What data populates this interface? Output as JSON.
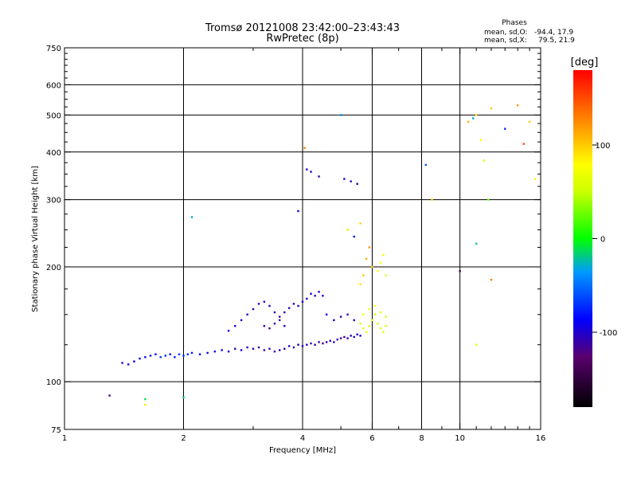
{
  "header": {
    "title_line1": "Tromsø 20121008 23:42:00–23:43:43",
    "title_line2": "RwPretec (8p)",
    "stats_title": "Phases",
    "stats_o_label": "mean, sd,O:",
    "stats_o_value": "-94.4, 17.9",
    "stats_x_label": "mean, sd,X:",
    "stats_x_value": "79.5, 21.9"
  },
  "chart_data": {
    "type": "scatter",
    "xlabel": "Frequency [MHz]",
    "ylabel": "Stationary phase Virtual Height [km]",
    "xscale": "log",
    "yscale": "log",
    "xlim": [
      1,
      16
    ],
    "ylim": [
      75,
      750
    ],
    "xticks": [
      1,
      2,
      4,
      6,
      8,
      10,
      16
    ],
    "yticks": [
      75,
      100,
      200,
      300,
      400,
      500,
      600,
      750
    ],
    "xgrid": [
      2,
      4,
      6,
      8,
      10
    ],
    "ygrid": [
      100,
      200,
      300,
      400,
      500,
      600
    ],
    "colorbar": {
      "label": "[deg]",
      "range": [
        -180,
        180
      ],
      "ticks": [
        -100,
        0,
        100
      ]
    },
    "trace_points": [
      [
        1.4,
        112,
        -95
      ],
      [
        1.45,
        111,
        -100
      ],
      [
        1.5,
        113,
        -90
      ],
      [
        1.55,
        115,
        -85
      ],
      [
        1.6,
        116,
        -92
      ],
      [
        1.65,
        117,
        -80
      ],
      [
        1.7,
        118,
        -88
      ],
      [
        1.75,
        116,
        -70
      ],
      [
        1.8,
        117,
        -75
      ],
      [
        1.85,
        118,
        -82
      ],
      [
        1.9,
        116,
        -78
      ],
      [
        1.95,
        118,
        -72
      ],
      [
        2.0,
        117,
        -68
      ],
      [
        2.05,
        118,
        -74
      ],
      [
        2.1,
        119,
        -80
      ],
      [
        2.2,
        118,
        -85
      ],
      [
        2.3,
        119,
        -90
      ],
      [
        2.4,
        120,
        -88
      ],
      [
        2.5,
        121,
        -92
      ],
      [
        2.6,
        120,
        -95
      ],
      [
        2.7,
        122,
        -100
      ],
      [
        2.8,
        121,
        -98
      ],
      [
        2.9,
        123,
        -102
      ],
      [
        3.0,
        122,
        -110
      ],
      [
        3.1,
        123,
        -105
      ],
      [
        3.2,
        121,
        -108
      ],
      [
        3.3,
        122,
        -112
      ],
      [
        3.4,
        120,
        -115
      ],
      [
        3.5,
        121,
        -110
      ],
      [
        3.6,
        122,
        -104
      ],
      [
        3.7,
        124,
        -100
      ],
      [
        3.8,
        123,
        -98
      ],
      [
        3.9,
        125,
        -95
      ],
      [
        4.0,
        124,
        -100
      ],
      [
        4.1,
        125,
        -105
      ],
      [
        4.2,
        126,
        -110
      ],
      [
        4.3,
        125,
        -108
      ],
      [
        4.4,
        127,
        -112
      ],
      [
        4.5,
        126,
        -115
      ],
      [
        4.6,
        127,
        -110
      ],
      [
        4.7,
        128,
        -105
      ],
      [
        4.8,
        127,
        -100
      ],
      [
        4.9,
        129,
        -108
      ],
      [
        5.0,
        130,
        -112
      ],
      [
        5.1,
        131,
        -115
      ],
      [
        5.2,
        130,
        -110
      ],
      [
        5.3,
        132,
        -105
      ],
      [
        5.4,
        131,
        -100
      ],
      [
        5.5,
        133,
        -98
      ],
      [
        5.6,
        132,
        -95
      ],
      [
        2.6,
        136,
        -95
      ],
      [
        2.7,
        140,
        -100
      ],
      [
        2.8,
        145,
        -98
      ],
      [
        2.9,
        150,
        -105
      ],
      [
        3.0,
        155,
        -110
      ],
      [
        3.1,
        160,
        -108
      ],
      [
        3.2,
        162,
        -112
      ],
      [
        3.3,
        158,
        -100
      ],
      [
        3.4,
        152,
        -105
      ],
      [
        3.5,
        148,
        -110
      ],
      [
        3.6,
        152,
        -108
      ],
      [
        3.7,
        156,
        -112
      ],
      [
        3.8,
        160,
        -105
      ],
      [
        3.9,
        158,
        -100
      ],
      [
        4.0,
        162,
        -95
      ],
      [
        4.1,
        165,
        -100
      ],
      [
        4.2,
        170,
        -98
      ],
      [
        4.3,
        168,
        -102
      ],
      [
        4.4,
        172,
        -100
      ],
      [
        4.5,
        168,
        -95
      ],
      [
        3.2,
        140,
        -110
      ],
      [
        3.3,
        138,
        -115
      ],
      [
        3.4,
        142,
        -108
      ],
      [
        3.5,
        145,
        -112
      ],
      [
        3.6,
        140,
        -105
      ],
      [
        4.6,
        150,
        -95
      ],
      [
        4.8,
        145,
        -100
      ],
      [
        5.0,
        148,
        -105
      ],
      [
        5.2,
        150,
        -110
      ],
      [
        5.4,
        145,
        -112
      ],
      [
        5.6,
        142,
        55
      ],
      [
        5.7,
        138,
        60
      ],
      [
        5.8,
        135,
        65
      ],
      [
        5.9,
        140,
        58
      ],
      [
        6.0,
        145,
        62
      ],
      [
        6.1,
        150,
        55
      ],
      [
        6.2,
        142,
        60
      ],
      [
        6.3,
        138,
        65
      ],
      [
        6.4,
        135,
        58
      ],
      [
        6.5,
        140,
        62
      ],
      [
        5.7,
        150,
        70
      ],
      [
        5.9,
        155,
        68
      ],
      [
        6.1,
        158,
        72
      ],
      [
        6.3,
        152,
        65
      ],
      [
        6.5,
        148,
        60
      ],
      [
        5.6,
        180,
        90
      ],
      [
        5.7,
        190,
        100
      ],
      [
        5.8,
        210,
        110
      ],
      [
        5.9,
        225,
        120
      ],
      [
        6.0,
        200,
        95
      ],
      [
        6.2,
        195,
        80
      ],
      [
        6.3,
        205,
        75
      ],
      [
        6.4,
        215,
        70
      ],
      [
        6.5,
        190,
        65
      ],
      [
        4.2,
        355,
        -105
      ],
      [
        4.4,
        345,
        -110
      ],
      [
        5.1,
        340,
        -100
      ],
      [
        5.3,
        335,
        -108
      ],
      [
        5.5,
        330,
        -112
      ],
      [
        4.1,
        360,
        -100
      ],
      [
        3.9,
        280,
        -90
      ],
      [
        5.2,
        250,
        90
      ],
      [
        5.6,
        260,
        100
      ],
      [
        5.4,
        240,
        -80
      ],
      [
        5.0,
        500,
        -40
      ],
      [
        4.05,
        410,
        130
      ],
      [
        2.1,
        270,
        -30
      ],
      [
        1.3,
        92,
        -115
      ],
      [
        1.6,
        90,
        -10
      ],
      [
        1.6,
        87,
        90
      ],
      [
        2.0,
        91,
        -20
      ],
      [
        8.2,
        370,
        -60
      ],
      [
        8.5,
        300,
        95
      ],
      [
        10.0,
        195,
        -140
      ],
      [
        10.5,
        480,
        110
      ],
      [
        11,
        500,
        90
      ],
      [
        11.3,
        430,
        80
      ],
      [
        11.5,
        380,
        60
      ],
      [
        12,
        520,
        100
      ],
      [
        13,
        460,
        -70
      ],
      [
        14,
        530,
        120
      ],
      [
        14.5,
        420,
        150
      ],
      [
        15,
        480,
        100
      ],
      [
        15.5,
        340,
        80
      ],
      [
        11,
        230,
        -20
      ],
      [
        12,
        185,
        130
      ],
      [
        11,
        125,
        60
      ],
      [
        10.8,
        490,
        -30
      ],
      [
        11.8,
        300,
        30
      ]
    ]
  }
}
